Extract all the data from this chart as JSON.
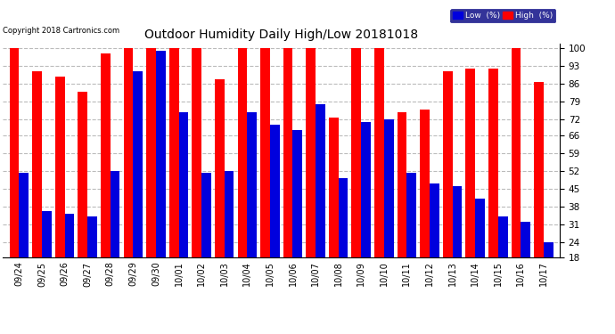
{
  "title": "Outdoor Humidity Daily High/Low 20181018",
  "copyright": "Copyright 2018 Cartronics.com",
  "dates": [
    "09/24",
    "09/25",
    "09/26",
    "09/27",
    "09/28",
    "09/29",
    "09/30",
    "10/01",
    "10/02",
    "10/03",
    "10/04",
    "10/05",
    "10/06",
    "10/07",
    "10/08",
    "10/09",
    "10/10",
    "10/11",
    "10/12",
    "10/13",
    "10/14",
    "10/15",
    "10/16",
    "10/17"
  ],
  "high": [
    100,
    91,
    89,
    83,
    98,
    100,
    100,
    100,
    100,
    88,
    100,
    100,
    100,
    100,
    73,
    100,
    100,
    75,
    76,
    91,
    92,
    92,
    100,
    87
  ],
  "low": [
    51,
    36,
    35,
    34,
    52,
    91,
    99,
    75,
    51,
    52,
    75,
    70,
    68,
    78,
    49,
    71,
    72,
    51,
    47,
    46,
    41,
    34,
    32,
    24
  ],
  "bg_color": "#ffffff",
  "bar_high_color": "#ff0000",
  "bar_low_color": "#0000dd",
  "grid_color": "#bbbbbb",
  "ylim_min": 18,
  "ylim_max": 102,
  "yticks": [
    18,
    24,
    31,
    38,
    45,
    52,
    59,
    66,
    72,
    79,
    86,
    93,
    100
  ],
  "bar_width": 0.42,
  "figwidth": 6.9,
  "figheight": 3.75,
  "dpi": 100
}
